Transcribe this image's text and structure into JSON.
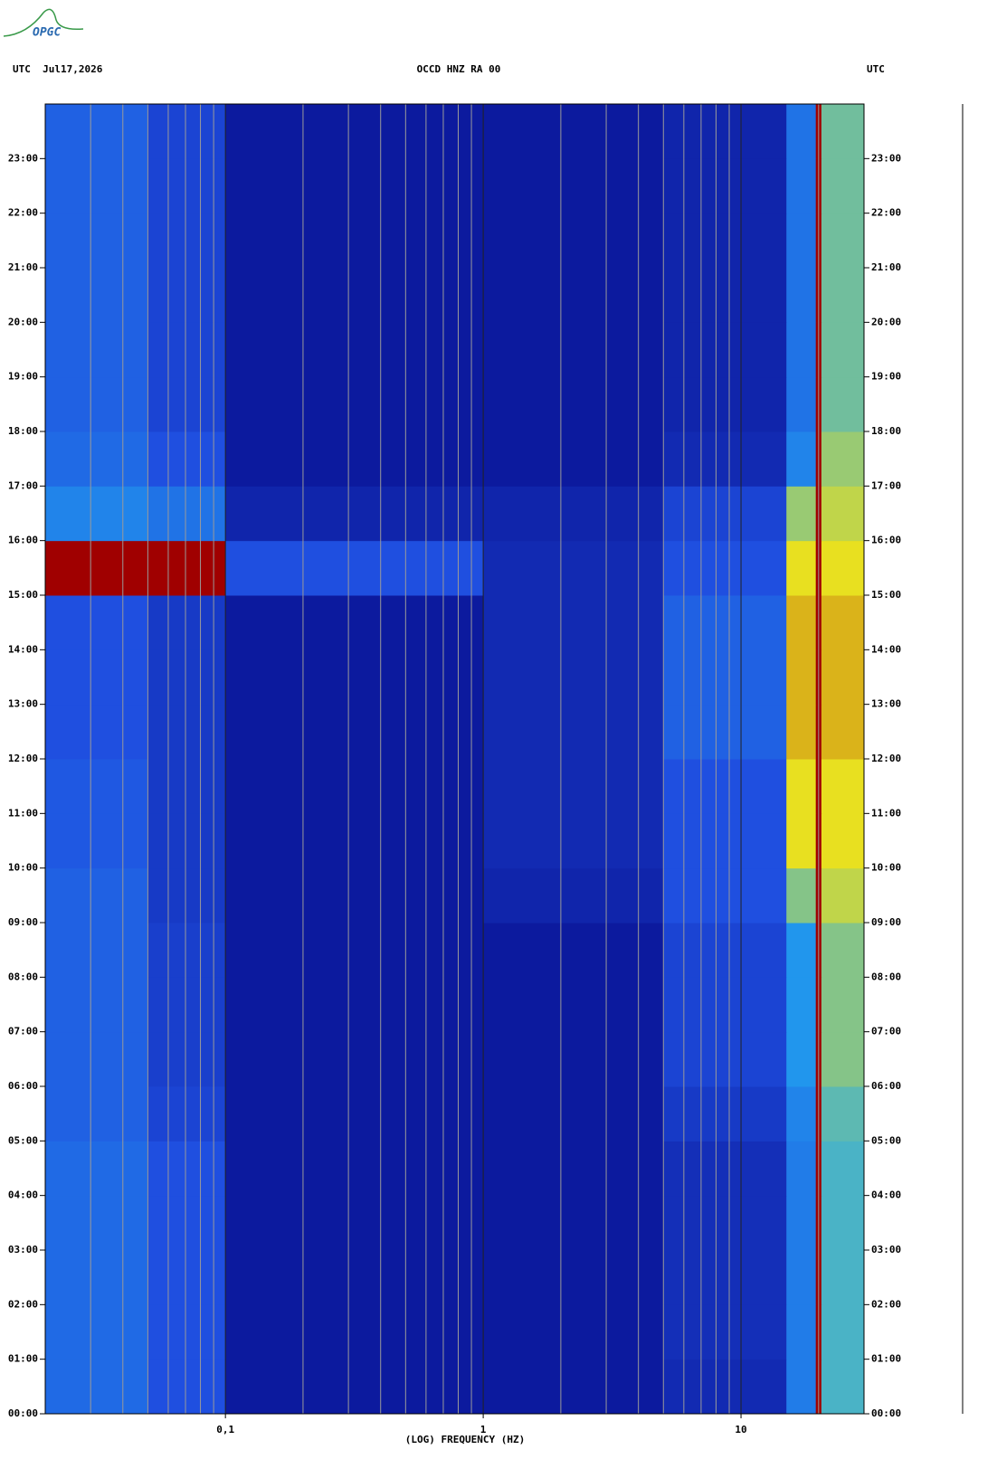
{
  "logo": "OPGC",
  "chart_data": {
    "type": "spectrogram",
    "header_left": "UTC  Jul17,2026",
    "title": "OCCD HNZ RA 00",
    "header_right": "UTC",
    "x_label": "(LOG) FREQUENCY (HZ)",
    "x_log": true,
    "xlim": [
      0.02,
      30
    ],
    "xticks": [
      {
        "value": 0.1,
        "label": "0,1"
      },
      1,
      10
    ],
    "xgrid_minor": [
      0.03,
      0.04,
      0.05,
      0.06,
      0.07,
      0.08,
      0.09,
      0.2,
      0.3,
      0.4,
      0.5,
      0.6,
      0.7,
      0.8,
      0.9,
      2,
      3,
      4,
      5,
      6,
      7,
      8,
      9,
      20
    ],
    "ylim": [
      0,
      24
    ],
    "yticks": [
      {
        "value": 0,
        "label": "00:00"
      },
      {
        "value": 1,
        "label": "01:00"
      },
      {
        "value": 2,
        "label": "02:00"
      },
      {
        "value": 3,
        "label": "03:00"
      },
      {
        "value": 4,
        "label": "04:00"
      },
      {
        "value": 5,
        "label": "05:00"
      },
      {
        "value": 6,
        "label": "06:00"
      },
      {
        "value": 7,
        "label": "07:00"
      },
      {
        "value": 8,
        "label": "08:00"
      },
      {
        "value": 9,
        "label": "09:00"
      },
      {
        "value": 10,
        "label": "10:00"
      },
      {
        "value": 11,
        "label": "11:00"
      },
      {
        "value": 12,
        "label": "12:00"
      },
      {
        "value": 13,
        "label": "13:00"
      },
      {
        "value": 14,
        "label": "14:00"
      },
      {
        "value": 15,
        "label": "15:00"
      },
      {
        "value": 16,
        "label": "16:00"
      },
      {
        "value": 17,
        "label": "17:00"
      },
      {
        "value": 18,
        "label": "18:00"
      },
      {
        "value": 19,
        "label": "19:00"
      },
      {
        "value": 20,
        "label": "20:00"
      },
      {
        "value": 21,
        "label": "21:00"
      },
      {
        "value": 22,
        "label": "22:00"
      },
      {
        "value": 23,
        "label": "23:00"
      }
    ],
    "time_edges": [
      0,
      1,
      2,
      3,
      4,
      5,
      6,
      7,
      8,
      9,
      10,
      11,
      12,
      13,
      14,
      15,
      16,
      17,
      18,
      19,
      20,
      21,
      22,
      23,
      24
    ],
    "freq_edges": [
      0.02,
      0.05,
      0.1,
      1,
      5,
      15,
      19.5,
      20.5,
      30
    ],
    "colors": [
      "#0c1a9e",
      "#1f4fe0",
      "#22a8f0",
      "#e8e020",
      "#a00000"
    ],
    "z": [
      [
        1.3,
        1,
        0,
        0,
        0.3,
        1.5,
        4,
        2.2
      ],
      [
        1.3,
        1,
        0,
        0,
        0.4,
        1.5,
        4,
        2.2
      ],
      [
        1.3,
        1,
        0,
        0,
        0.4,
        1.5,
        4,
        2.2
      ],
      [
        1.3,
        1,
        0,
        0,
        0.4,
        1.5,
        4,
        2.2
      ],
      [
        1.3,
        1,
        0,
        0,
        0.4,
        1.5,
        4,
        2.2
      ],
      [
        1.2,
        0.8,
        0,
        0,
        0.6,
        1.6,
        4,
        2.3
      ],
      [
        1.2,
        0.7,
        0,
        0,
        0.8,
        1.8,
        4,
        2.5
      ],
      [
        1.2,
        0.7,
        0,
        0,
        0.8,
        1.8,
        4,
        2.5
      ],
      [
        1.2,
        0.7,
        0,
        0,
        0.8,
        1.8,
        4,
        2.5
      ],
      [
        1.2,
        0.6,
        0,
        0.2,
        1,
        2.5,
        4,
        2.8
      ],
      [
        1.1,
        0.6,
        0,
        0.3,
        1,
        3,
        4,
        3
      ],
      [
        1.1,
        0.6,
        0,
        0.3,
        1,
        3,
        4,
        3
      ],
      [
        1,
        0.6,
        0,
        0.3,
        1.2,
        3.2,
        4,
        3.2
      ],
      [
        1,
        0.6,
        0,
        0.3,
        1.2,
        3.2,
        4,
        3.2
      ],
      [
        1,
        0.6,
        0,
        0.3,
        1.2,
        3.2,
        4,
        3.2
      ],
      [
        4,
        4,
        1,
        0.3,
        1,
        3,
        4,
        3
      ],
      [
        1.6,
        1.4,
        0.2,
        0.2,
        0.8,
        2.6,
        4,
        2.8
      ],
      [
        1.3,
        1,
        0,
        0,
        0.3,
        1.6,
        4,
        2.6
      ],
      [
        1.2,
        0.8,
        0,
        0,
        0.2,
        1.4,
        4,
        2.4
      ],
      [
        1.2,
        0.8,
        0,
        0,
        0.2,
        1.4,
        4,
        2.4
      ],
      [
        1.2,
        0.8,
        0,
        0,
        0.2,
        1.4,
        4,
        2.4
      ],
      [
        1.2,
        0.8,
        0,
        0,
        0.2,
        1.4,
        4,
        2.4
      ],
      [
        1.2,
        0.8,
        0,
        0,
        0.2,
        1.4,
        4,
        2.4
      ],
      [
        1.2,
        0.8,
        0,
        0,
        0.2,
        1.4,
        4,
        2.4
      ]
    ]
  }
}
